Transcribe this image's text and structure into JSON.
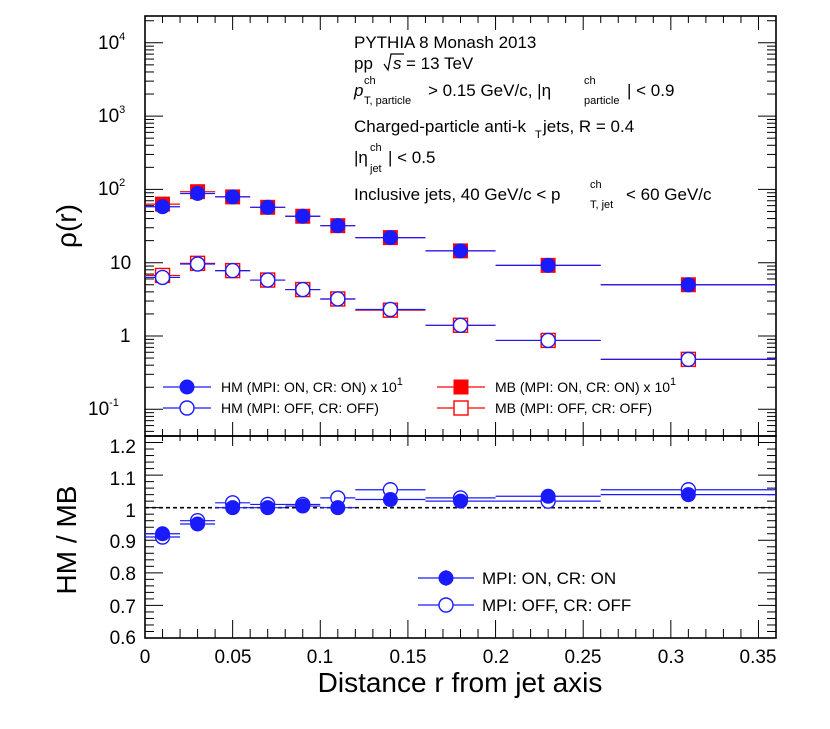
{
  "chart_data": [
    {
      "type": "scatter",
      "panel": "top",
      "ylabel": "ρ(r)",
      "yscale": "log",
      "ylim": [
        0.05,
        20000
      ],
      "xlim": [
        0,
        0.36
      ],
      "y_tick_labels": [
        "10",
        "1",
        "10"
      ],
      "y_tick_exponents": [
        "-1",
        "",
        "2",
        "3",
        "4"
      ],
      "annotations": {
        "generator": "PYTHIA 8 Monash 2013",
        "pp": "pp",
        "sqrts_value": "s",
        "energy": "= 13 TeV",
        "pt_cut_symbol": "p",
        "pt_cut_sub": "T, particle",
        "pt_cut_sup": "ch",
        "pt_cut_text": "> 0.15 GeV/c, |η",
        "eta_sub": "particle",
        "eta_sup": "ch",
        "eta_cut_text": "| < 0.9",
        "jets_prefix": "Charged-particle anti-k",
        "jets_kt_sub": "T",
        "jets_suffix": " jets, R = 0.4",
        "etajet_prefix": "|η",
        "etajet_sub": "jet",
        "etajet_sup": "ch",
        "etajet_suffix": "| < 0.5",
        "inclusive_prefix": "Inclusive jets, 40 GeV/c < p",
        "inclusive_sub": "T, jet",
        "inclusive_sup": "ch",
        "inclusive_suffix": " < 60 GeV/c"
      },
      "legend": {
        "hm_on": "HM (MPI: ON, CR: ON) x 10",
        "hm_on_exp": "1",
        "hm_off": "HM (MPI: OFF, CR: OFF)",
        "mb_on": "MB (MPI: ON, CR: ON) x 10",
        "mb_on_exp": "1",
        "mb_off": "MB (MPI: OFF, CR: OFF)",
        "placement": "bottom"
      },
      "x_bins": [
        [
          0,
          0.02
        ],
        [
          0.02,
          0.04
        ],
        [
          0.04,
          0.06
        ],
        [
          0.06,
          0.08
        ],
        [
          0.08,
          0.1
        ],
        [
          0.1,
          0.12
        ],
        [
          0.12,
          0.16
        ],
        [
          0.16,
          0.2
        ],
        [
          0.2,
          0.26
        ],
        [
          0.26,
          0.36
        ]
      ],
      "x": [
        0.01,
        0.03,
        0.05,
        0.07,
        0.09,
        0.11,
        0.14,
        0.18,
        0.23,
        0.31
      ],
      "series": [
        {
          "name": "HM (MPI: ON, CR: ON) x 10^1",
          "marker": "filled-circle",
          "color": "#1a1aff",
          "values": [
            58,
            88,
            79,
            57,
            43,
            32,
            22,
            14.5,
            9.2,
            5.0
          ]
        },
        {
          "name": "MB (MPI: ON, CR: ON) x 10^1",
          "marker": "filled-square",
          "color": "#ff0000",
          "values": [
            63,
            93,
            79,
            57,
            43,
            32,
            22,
            14.5,
            9.2,
            5.0
          ]
        },
        {
          "name": "HM (MPI: OFF, CR: OFF)",
          "marker": "open-circle",
          "color": "#1a1aff",
          "values": [
            6.3,
            9.6,
            7.8,
            5.8,
            4.3,
            3.2,
            2.3,
            1.4,
            0.87,
            0.48
          ]
        },
        {
          "name": "MB (MPI: OFF, CR: OFF)",
          "marker": "open-square",
          "color": "#ff0000",
          "values": [
            6.7,
            9.8,
            7.8,
            5.8,
            4.3,
            3.2,
            2.25,
            1.4,
            0.87,
            0.48
          ]
        }
      ]
    },
    {
      "type": "scatter",
      "panel": "bottom",
      "ylabel": "HM / MB",
      "xlabel": "Distance r from jet axis",
      "ylim": [
        0.6,
        1.22
      ],
      "xlim": [
        0,
        0.36
      ],
      "y_ticks": [
        "0.6",
        "0.7",
        "0.8",
        "0.9",
        "1",
        "1.1",
        "1.2"
      ],
      "x_ticks": [
        "0",
        "0.05",
        "0.1",
        "0.15",
        "0.2",
        "0.25",
        "0.3",
        "0.35"
      ],
      "reference_line": 1.0,
      "legend": {
        "on": "MPI: ON, CR: ON",
        "off": "MPI: OFF, CR: OFF",
        "placement": "bottom-right"
      },
      "x": [
        0.01,
        0.03,
        0.05,
        0.07,
        0.09,
        0.11,
        0.14,
        0.18,
        0.23,
        0.31
      ],
      "series": [
        {
          "name": "MPI: ON, CR: ON",
          "marker": "filled-circle",
          "color": "#1a1aff",
          "values": [
            0.92,
            0.95,
            1.0,
            1.0,
            1.005,
            1.0,
            1.025,
            1.02,
            1.035,
            1.04
          ]
        },
        {
          "name": "MPI: OFF, CR: OFF",
          "marker": "open-circle",
          "color": "#1a1aff",
          "values": [
            0.91,
            0.96,
            1.015,
            1.01,
            1.01,
            1.03,
            1.055,
            1.03,
            1.02,
            1.055
          ]
        }
      ]
    }
  ]
}
